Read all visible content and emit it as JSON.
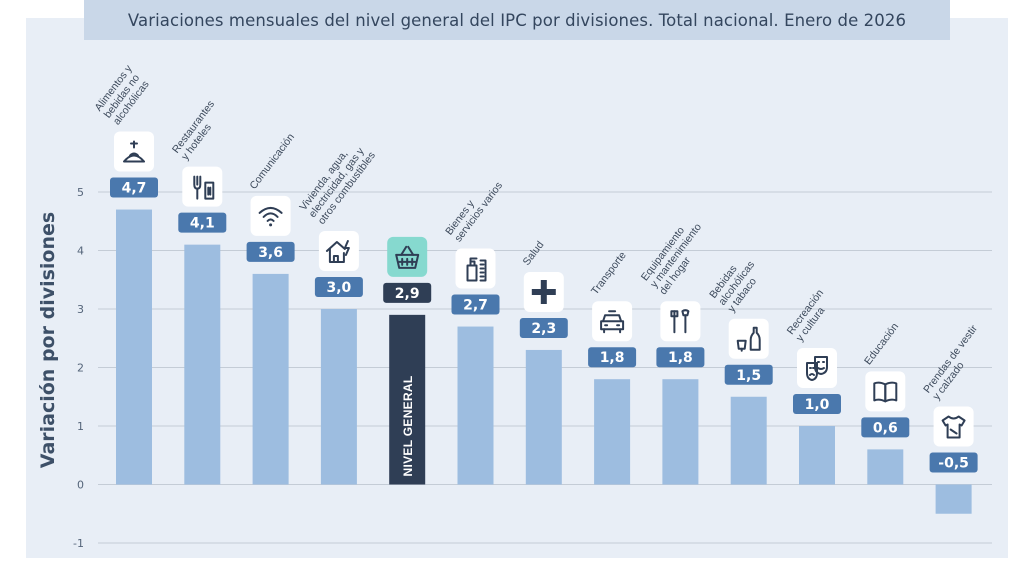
{
  "title": "Variaciones mensuales del nivel general del IPC por divisiones. Total nacional. Enero de 2026",
  "colors": {
    "bar": "#9dbde0",
    "highlight_bar": "#2f3e55",
    "value_box": "#4a78ad",
    "highlight_value_box": "#2f3e55",
    "highlight_icon_bg": "#86d9cf",
    "grid": "#c4ccd6"
  },
  "chart_data": {
    "type": "bar",
    "title": "Variaciones mensuales del nivel general del IPC por divisiones. Total nacional. Enero de 2026",
    "xlabel": "",
    "ylabel": "Variación por divisiones",
    "ylim": [
      -1,
      5
    ],
    "yticks": [
      "-1",
      "0",
      "1",
      "2",
      "3",
      "4",
      "5"
    ],
    "grid": true,
    "categories": [
      "Alimentos y bebidas no alcohólicas",
      "Restaurantes y hoteles",
      "Comunicación",
      "Vivienda, agua, electricidad, gas y otros combustibles",
      "NIVEL GENERAL",
      "Bienes y servicios varios",
      "Salud",
      "Transporte",
      "Equipamiento y mantenimiento del hogar",
      "Bebidas alcohólicas y tabaco",
      "Recreación y cultura",
      "Educación",
      "Prendas de vestir y calzado"
    ],
    "values": [
      4.7,
      4.1,
      3.6,
      3.0,
      2.9,
      2.7,
      2.3,
      1.8,
      1.8,
      1.5,
      1.0,
      0.6,
      -0.5
    ],
    "value_labels": [
      "4,7",
      "4,1",
      "3,6",
      "3,0",
      "2,9",
      "2,7",
      "2,3",
      "1,8",
      "1,8",
      "1,5",
      "1,0",
      "0,6",
      "-0,5"
    ],
    "category_label_lines": [
      [
        "Alimentos y",
        "bebidas no",
        "alcohólicas"
      ],
      [
        "Restaurantes",
        "y hoteles"
      ],
      [
        "Comunicación"
      ],
      [
        "Vivienda, agua,",
        "electricidad, gas y",
        "otros combustibles"
      ],
      [],
      [
        "Bienes y",
        "servicios varios"
      ],
      [
        "Salud"
      ],
      [
        "Transporte"
      ],
      [
        "Equipamiento",
        "y mantenimiento",
        "del hogar"
      ],
      [
        "Bebidas",
        "alcohólicas",
        "y tabaco"
      ],
      [
        "Recreación",
        "y cultura"
      ],
      [
        "Educación"
      ],
      [
        "Prendas de vestir",
        "y calzado"
      ]
    ],
    "highlight_index": 4,
    "highlight_bar_label": "NIVEL GENERAL",
    "icons": [
      "food-basket-icon",
      "restaurant-icon",
      "wifi-icon",
      "house-energy-icon",
      "shopping-basket-icon",
      "personal-care-icon",
      "health-cross-icon",
      "car-icon",
      "tools-icon",
      "bottle-icon",
      "theater-masks-icon",
      "book-icon",
      "tshirt-icon"
    ]
  }
}
